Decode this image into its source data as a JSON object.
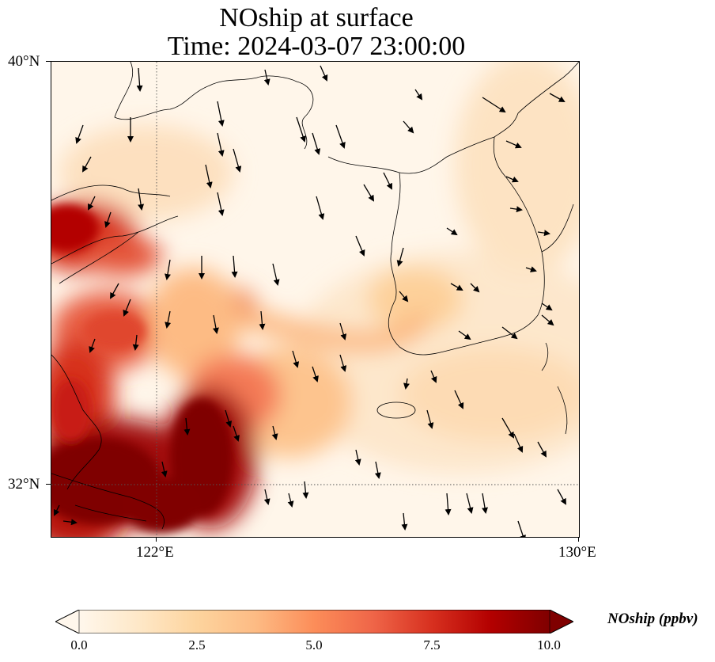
{
  "title": {
    "line1": "NOship at surface",
    "line2": "Time: 2024-03-07 23:00:00"
  },
  "map": {
    "variable": "NOship",
    "units": "ppbv",
    "lon_range": [
      120,
      130
    ],
    "lat_range": [
      31,
      40
    ],
    "colormap": "OrRd",
    "coastline_color": "#000000",
    "gridline_style": "dotted",
    "gridlines": {
      "lons": [
        122
      ],
      "lats": [
        32
      ]
    }
  },
  "axes": {
    "lat_labels": [
      "40°N",
      "32°N"
    ],
    "lon_labels": [
      "122°E",
      "130°E"
    ]
  },
  "colorbar": {
    "label": "NOship (ppbv)",
    "ticks": [
      "0.0",
      "2.5",
      "5.0",
      "7.5",
      "10.0"
    ],
    "range": [
      0,
      10
    ],
    "extend": "both",
    "stops": [
      "#fff7ec",
      "#fee8c8",
      "#fdd49e",
      "#fdbb84",
      "#fc8d59",
      "#ef6548",
      "#d7301f",
      "#b30000",
      "#7f0000"
    ]
  }
}
